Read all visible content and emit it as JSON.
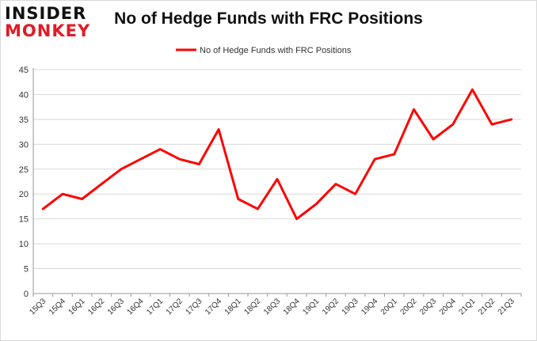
{
  "logo": {
    "line1": "INSIDER",
    "line2": "MONKEY"
  },
  "chart_data": {
    "type": "line",
    "title": "No of Hedge Funds with FRC Positions",
    "categories": [
      "15Q3",
      "15Q4",
      "16Q1",
      "16Q2",
      "16Q3",
      "16Q4",
      "17Q1",
      "17Q2",
      "17Q3",
      "17Q4",
      "18Q1",
      "18Q2",
      "18Q3",
      "18Q4",
      "19Q1",
      "19Q2",
      "19Q3",
      "19Q4",
      "20Q1",
      "20Q2",
      "20Q3",
      "20Q4",
      "21Q1",
      "21Q2",
      "21Q3"
    ],
    "series": [
      {
        "name": "No of Hedge Funds with FRC Positions",
        "values": [
          17,
          20,
          19,
          22,
          25,
          27,
          29,
          27,
          26,
          33,
          19,
          17,
          23,
          15,
          18,
          22,
          20,
          27,
          28,
          37,
          31,
          34,
          41,
          34,
          35
        ]
      }
    ],
    "ylim": [
      0,
      45
    ],
    "yticks": [
      0,
      5,
      10,
      15,
      20,
      25,
      30,
      35,
      40,
      45
    ],
    "grid": true,
    "legend": "top-center",
    "colors": {
      "line": "#ff0000",
      "grid": "#d9d9d9",
      "axis": "#999999"
    }
  }
}
